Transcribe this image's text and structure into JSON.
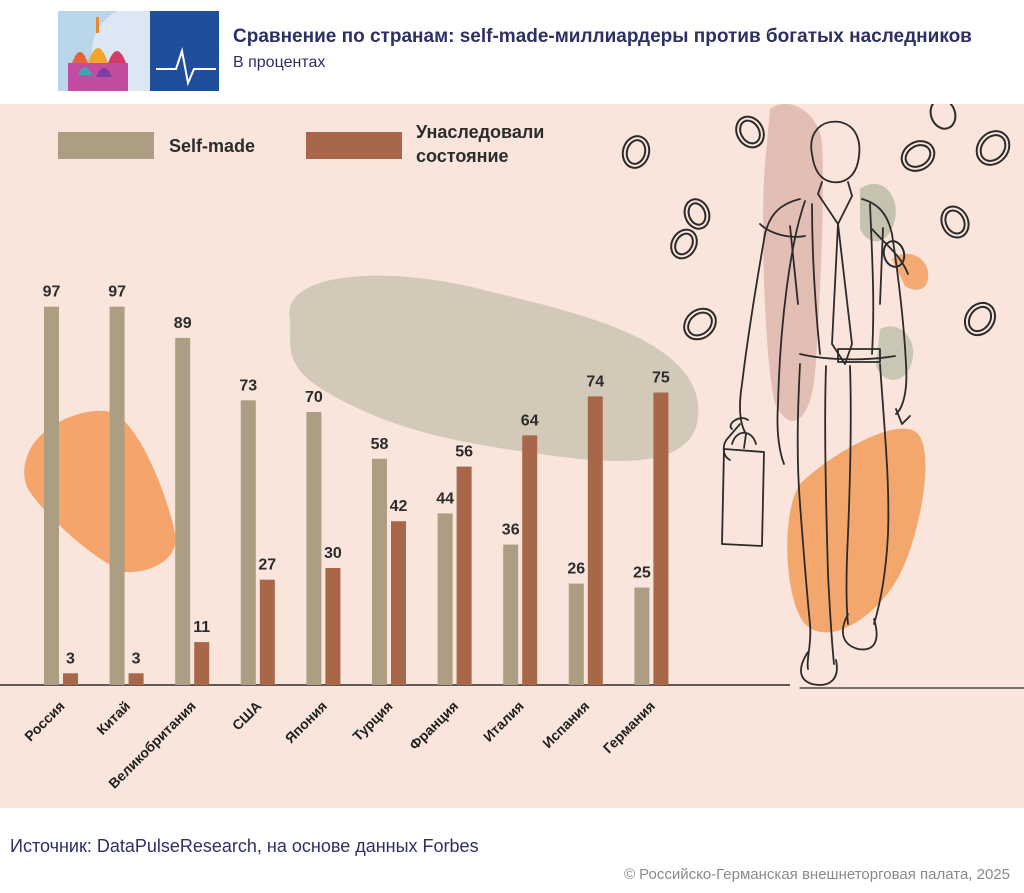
{
  "header": {
    "title": "Сравнение по странам: self-made-миллиардеры против богатых наследников",
    "subtitle": "В процентах"
  },
  "legend": {
    "self_made": "Self-made",
    "inherited": "Унаследовали состояние",
    "inherited_line1": "Унаследовали",
    "inherited_line2": "состояние"
  },
  "colors": {
    "self_made": "#ab9e82",
    "inherited": "#a96749",
    "background": "#f9e5dc",
    "title": "#2c3065"
  },
  "chart_data": {
    "type": "bar",
    "title": "Сравнение по странам: self-made-миллиардеры против богатых наследников",
    "subtitle": "В процентах",
    "categories": [
      "Россия",
      "Китай",
      "Великобритания",
      "США",
      "Япония",
      "Турция",
      "Франция",
      "Италия",
      "Испания",
      "Германия"
    ],
    "series": [
      {
        "name": "Self-made",
        "values": [
          97,
          97,
          89,
          73,
          70,
          58,
          44,
          36,
          26,
          25
        ]
      },
      {
        "name": "Унаследовали состояние",
        "values": [
          3,
          3,
          11,
          27,
          30,
          42,
          56,
          64,
          74,
          75
        ]
      }
    ],
    "ylim": [
      0,
      100
    ],
    "xlabel": "",
    "ylabel": "",
    "legend_position": "top-left",
    "grid": false
  },
  "footer": {
    "source": "Источник: DataPulseResearch, на основе данных Forbes",
    "copyright": "© Российско-Германская внешнеторговая палата, 2025"
  }
}
